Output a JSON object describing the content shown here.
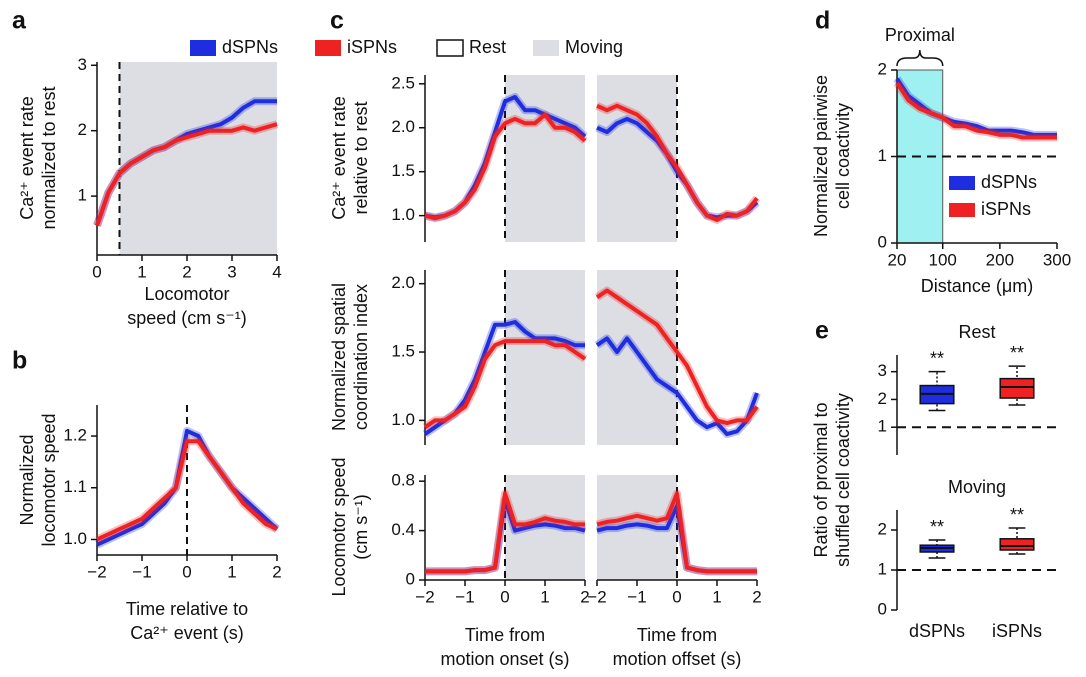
{
  "chart_data": [
    {
      "type": "line",
      "panel": "a",
      "ylabel": [
        "Ca²⁺ event rate",
        "normalized to rest"
      ],
      "xlabel": [
        "Locomotor",
        "speed (cm s⁻¹)"
      ],
      "x": [
        0,
        0.25,
        0.5,
        0.75,
        1,
        1.25,
        1.5,
        1.75,
        2,
        2.25,
        2.5,
        2.75,
        3,
        3.25,
        3.5,
        3.75,
        4
      ],
      "series": [
        {
          "name": "dSPNs",
          "color": "#1f2de0",
          "values": [
            0.55,
            1.05,
            1.35,
            1.5,
            1.6,
            1.7,
            1.75,
            1.85,
            1.95,
            2.0,
            2.05,
            2.1,
            2.2,
            2.35,
            2.45,
            2.45,
            2.45
          ]
        },
        {
          "name": "iSPNs",
          "color": "#ee2222",
          "values": [
            0.55,
            1.05,
            1.35,
            1.5,
            1.6,
            1.7,
            1.75,
            1.85,
            1.9,
            1.95,
            2.0,
            2.0,
            2.0,
            2.05,
            2.0,
            2.05,
            2.1
          ]
        }
      ],
      "rest_label": "Rest",
      "shade": {
        "from": 0.5,
        "to": 4,
        "color": "#dcdee3",
        "label": "Moving"
      },
      "vline": 0.5,
      "xlim": [
        0,
        4
      ],
      "xticks": [
        0,
        1,
        2,
        3,
        4
      ],
      "ylim": [
        0.1,
        3.05
      ],
      "yticks": [
        1,
        2,
        3
      ]
    },
    {
      "type": "line",
      "panel": "b",
      "ylabel": [
        "Normalized",
        "locomotor speed"
      ],
      "xlabel": [
        "Time relative to",
        "Ca²⁺ event (s)"
      ],
      "x": [
        -2,
        -1.75,
        -1.5,
        -1.25,
        -1,
        -0.75,
        -0.5,
        -0.25,
        0,
        0.25,
        0.5,
        0.75,
        1,
        1.25,
        1.5,
        1.75,
        2
      ],
      "series": [
        {
          "color": "#1f2de0",
          "values": [
            0.99,
            1.0,
            1.01,
            1.02,
            1.03,
            1.05,
            1.07,
            1.1,
            1.21,
            1.2,
            1.16,
            1.13,
            1.1,
            1.08,
            1.06,
            1.04,
            1.02
          ]
        },
        {
          "color": "#ee2222",
          "values": [
            1.0,
            1.01,
            1.02,
            1.03,
            1.04,
            1.06,
            1.08,
            1.1,
            1.19,
            1.19,
            1.16,
            1.13,
            1.1,
            1.07,
            1.05,
            1.03,
            1.02
          ]
        }
      ],
      "vline": 0,
      "xlim": [
        -2,
        2
      ],
      "xticks": [
        {
          "value": -2,
          "label": "−2"
        },
        {
          "value": -1,
          "label": "−1"
        },
        0,
        1,
        2
      ],
      "ylim": [
        0.97,
        1.26
      ],
      "yticks": [
        {
          "value": 1,
          "label": "1.0"
        },
        1.1,
        1.2
      ]
    },
    {
      "type": "line",
      "panel": "c",
      "ylabel": [
        "Ca²⁺ event rate",
        "relative to rest"
      ],
      "x": [
        -2,
        -1.75,
        -1.5,
        -1.25,
        -1,
        -0.75,
        -0.5,
        -0.25,
        0,
        0.25,
        0.5,
        0.75,
        1,
        1.25,
        1.5,
        1.75,
        2
      ],
      "series": [
        {
          "color": "#1f2de0",
          "values": [
            1.0,
            0.98,
            1.0,
            1.05,
            1.15,
            1.35,
            1.6,
            1.95,
            2.3,
            2.35,
            2.2,
            2.2,
            2.15,
            2.1,
            2.05,
            2.0,
            1.9
          ]
        },
        {
          "color": "#ee2222",
          "values": [
            1.0,
            0.97,
            1.0,
            1.05,
            1.15,
            1.3,
            1.55,
            1.9,
            2.05,
            2.1,
            2.05,
            2.05,
            2.15,
            2.0,
            2.0,
            1.95,
            1.85
          ]
        }
      ],
      "shade": {
        "from": 0,
        "to": 2,
        "color": "#dcdee3"
      },
      "vline": 0,
      "xlim": [
        -2,
        2
      ],
      "ylim": [
        0.7,
        2.6
      ],
      "yticks": [
        {
          "value": 1,
          "label": "1.0"
        },
        1.5,
        {
          "value": 2,
          "label": "2.0"
        },
        2.5
      ]
    },
    {
      "type": "line",
      "x": [
        -2,
        -1.75,
        -1.5,
        -1.25,
        -1,
        -0.75,
        -0.5,
        -0.25,
        0,
        0.25,
        0.5,
        0.75,
        1,
        1.25,
        1.5,
        1.75,
        2
      ],
      "series": [
        {
          "color": "#1f2de0",
          "values": [
            2.0,
            1.95,
            2.05,
            2.1,
            2.05,
            1.95,
            1.85,
            1.7,
            1.5,
            1.35,
            1.15,
            1.0,
            0.98,
            1.0,
            1.0,
            1.05,
            1.15
          ]
        },
        {
          "color": "#ee2222",
          "values": [
            2.25,
            2.2,
            2.25,
            2.2,
            2.15,
            2.05,
            1.9,
            1.7,
            1.55,
            1.35,
            1.15,
            1.0,
            0.95,
            1.02,
            1.0,
            1.05,
            1.2
          ]
        }
      ],
      "shade": {
        "from": -2,
        "to": 0,
        "color": "#dcdee3"
      },
      "vline": 0,
      "xlim": [
        -2,
        2
      ],
      "ylim": [
        0.7,
        2.6
      ]
    },
    {
      "type": "line",
      "ylabel": [
        "Normalized spatial",
        "coordination index"
      ],
      "x": [
        -2,
        -1.75,
        -1.5,
        -1.25,
        -1,
        -0.75,
        -0.5,
        -0.25,
        0,
        0.25,
        0.5,
        0.75,
        1,
        1.25,
        1.5,
        1.75,
        2
      ],
      "series": [
        {
          "color": "#1f2de0",
          "values": [
            0.9,
            0.95,
            1.0,
            1.05,
            1.15,
            1.3,
            1.5,
            1.7,
            1.7,
            1.72,
            1.65,
            1.6,
            1.6,
            1.6,
            1.58,
            1.55,
            1.55
          ]
        },
        {
          "color": "#ee2222",
          "values": [
            0.95,
            1.0,
            1.0,
            1.05,
            1.1,
            1.25,
            1.45,
            1.55,
            1.58,
            1.58,
            1.58,
            1.58,
            1.58,
            1.55,
            1.55,
            1.5,
            1.45
          ]
        }
      ],
      "shade": {
        "from": 0,
        "to": 2,
        "color": "#dcdee3"
      },
      "vline": 0,
      "xlim": [
        -2,
        2
      ],
      "ylim": [
        0.82,
        2.1
      ],
      "yticks": [
        {
          "value": 1,
          "label": "1.0"
        },
        1.5,
        {
          "value": 2,
          "label": "2.0"
        }
      ]
    },
    {
      "type": "line",
      "x": [
        -2,
        -1.75,
        -1.5,
        -1.25,
        -1,
        -0.75,
        -0.5,
        -0.25,
        0,
        0.25,
        0.5,
        0.75,
        1,
        1.25,
        1.5,
        1.75,
        2
      ],
      "series": [
        {
          "color": "#1f2de0",
          "values": [
            1.55,
            1.6,
            1.5,
            1.6,
            1.5,
            1.4,
            1.3,
            1.25,
            1.2,
            1.1,
            1.0,
            0.95,
            0.98,
            0.9,
            0.92,
            1.0,
            1.2
          ]
        },
        {
          "color": "#ee2222",
          "values": [
            1.9,
            1.95,
            1.9,
            1.85,
            1.8,
            1.75,
            1.7,
            1.6,
            1.5,
            1.4,
            1.25,
            1.1,
            1.0,
            0.98,
            1.0,
            1.0,
            1.1
          ]
        }
      ],
      "shade": {
        "from": -2,
        "to": 0,
        "color": "#dcdee3"
      },
      "vline": 0,
      "xlim": [
        -2,
        2
      ],
      "ylim": [
        0.82,
        2.1
      ]
    },
    {
      "type": "line",
      "ylabel": [
        "Locomotor speed",
        "(cm s⁻¹)"
      ],
      "xlabel": [
        "Time from",
        "motion onset (s)"
      ],
      "x": [
        -2,
        -1.75,
        -1.5,
        -1.25,
        -1,
        -0.75,
        -0.5,
        -0.25,
        0,
        0.25,
        0.5,
        0.75,
        1,
        1.25,
        1.5,
        1.75,
        2
      ],
      "series": [
        {
          "color": "#1f2de0",
          "values": [
            0.07,
            0.07,
            0.07,
            0.07,
            0.07,
            0.08,
            0.08,
            0.1,
            0.65,
            0.4,
            0.42,
            0.44,
            0.45,
            0.44,
            0.42,
            0.42,
            0.4
          ]
        },
        {
          "color": "#ee2222",
          "values": [
            0.07,
            0.07,
            0.07,
            0.07,
            0.07,
            0.08,
            0.08,
            0.1,
            0.7,
            0.45,
            0.45,
            0.47,
            0.5,
            0.48,
            0.47,
            0.45,
            0.45
          ]
        }
      ],
      "shade": {
        "from": 0,
        "to": 2,
        "color": "#dcdee3"
      },
      "vline": 0,
      "xlim": [
        -2,
        2
      ],
      "xticks": [
        {
          "value": -2,
          "label": "−2"
        },
        {
          "value": -1,
          "label": "−1"
        },
        0,
        1,
        2
      ],
      "ylim": [
        0,
        0.85
      ],
      "yticks": [
        0,
        0.4,
        0.8
      ]
    },
    {
      "type": "line",
      "xlabel": [
        "Time from",
        "motion offset (s)"
      ],
      "x": [
        -2,
        -1.75,
        -1.5,
        -1.25,
        -1,
        -0.75,
        -0.5,
        -0.25,
        0,
        0.25,
        0.5,
        0.75,
        1,
        1.25,
        1.5,
        1.75,
        2
      ],
      "series": [
        {
          "color": "#1f2de0",
          "values": [
            0.4,
            0.42,
            0.42,
            0.44,
            0.45,
            0.44,
            0.42,
            0.42,
            0.6,
            0.1,
            0.08,
            0.07,
            0.07,
            0.07,
            0.07,
            0.07,
            0.07
          ]
        },
        {
          "color": "#ee2222",
          "values": [
            0.45,
            0.47,
            0.48,
            0.5,
            0.52,
            0.5,
            0.48,
            0.5,
            0.7,
            0.1,
            0.08,
            0.07,
            0.07,
            0.07,
            0.07,
            0.07,
            0.07
          ]
        }
      ],
      "shade": {
        "from": -2,
        "to": 0,
        "color": "#dcdee3"
      },
      "vline": 0,
      "xlim": [
        -2,
        2
      ],
      "xticks": [
        {
          "value": -2,
          "label": "−2"
        },
        {
          "value": -1,
          "label": "−1"
        },
        0,
        1,
        2
      ],
      "ylim": [
        0,
        0.85
      ]
    },
    {
      "type": "line",
      "panel": "d",
      "ylabel": [
        "Normalized pairwise",
        "cell coactivity"
      ],
      "xlabel": [
        "Distance (μm)"
      ],
      "x": [
        20,
        40,
        60,
        80,
        100,
        120,
        140,
        160,
        180,
        200,
        220,
        240,
        260,
        280,
        300
      ],
      "series": [
        {
          "name": "dSPNs",
          "color": "#1f2de0",
          "values": [
            1.9,
            1.7,
            1.6,
            1.5,
            1.45,
            1.4,
            1.38,
            1.35,
            1.3,
            1.3,
            1.3,
            1.28,
            1.25,
            1.25,
            1.25
          ]
        },
        {
          "name": "iSPNs",
          "color": "#ee2222",
          "values": [
            1.85,
            1.65,
            1.55,
            1.5,
            1.45,
            1.35,
            1.35,
            1.3,
            1.28,
            1.25,
            1.25,
            1.22,
            1.22,
            1.22,
            1.22
          ]
        }
      ],
      "legend": "right",
      "shade": {
        "from": 20,
        "to": 100,
        "color": "#9ff0f0",
        "label": "Proximal"
      },
      "hline": 1,
      "xlim": [
        20,
        300
      ],
      "xticks": [
        20,
        100,
        200,
        300
      ],
      "ylim": [
        0,
        2
      ],
      "yticks": [
        0,
        1,
        2
      ]
    },
    {
      "type": "box",
      "panel": "e",
      "title": "Rest",
      "ylabel": [
        "Ratio of proximal to",
        "shuffled cell coactivity"
      ],
      "boxes": [
        {
          "color": "#1f2de0",
          "whislo": 1.6,
          "q1": 1.85,
          "med": 2.2,
          "q3": 2.5,
          "whishi": 3.0,
          "annotation": "**"
        },
        {
          "color": "#ee2222",
          "whislo": 1.8,
          "q1": 2.05,
          "med": 2.45,
          "q3": 2.75,
          "whishi": 3.2,
          "annotation": "**"
        }
      ],
      "hline": 1,
      "ylim": [
        0,
        3.6
      ],
      "yticks": [
        1,
        2,
        3
      ]
    },
    {
      "type": "box",
      "title": "Moving",
      "categories": [
        "dSPNs",
        "iSPNs"
      ],
      "boxes": [
        {
          "color": "#1f2de0",
          "whislo": 1.3,
          "q1": 1.45,
          "med": 1.55,
          "q3": 1.62,
          "whishi": 1.75,
          "annotation": "**"
        },
        {
          "color": "#ee2222",
          "whislo": 1.4,
          "q1": 1.5,
          "med": 1.6,
          "q3": 1.78,
          "whishi": 2.05,
          "annotation": "**"
        }
      ],
      "hline": 1,
      "ylim": [
        0,
        2.5
      ],
      "yticks": [
        0,
        1,
        2
      ]
    }
  ]
}
